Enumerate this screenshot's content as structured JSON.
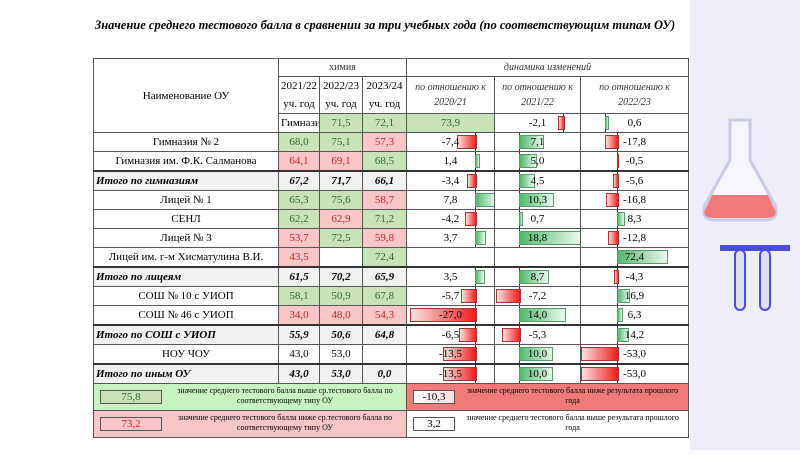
{
  "title": "Значение среднего тестового балла в сравнении за три учебных года (по соответствующим типам ОУ)",
  "header": {
    "name": "Наименование ОУ",
    "subject": "химия",
    "years": [
      "2021/22 уч. год",
      "2022/23 уч. год",
      "2023/24 уч. год"
    ],
    "dynamics": "динамика изменений",
    "dyn_cols": [
      "по отношению к 2020/21",
      "по отношению к 2021/22",
      "по отношению к 2022/23"
    ]
  },
  "rows": [
    {
      "name": "Гимназия «Лаборатория Салахова»",
      "vals": [
        "71,5",
        "72,1",
        "73,9"
      ],
      "cls": [
        "g",
        "g",
        "g"
      ],
      "dyn": [
        -2.1,
        0.6,
        1.8
      ],
      "total": false
    },
    {
      "name": "Гимназия № 2",
      "vals": [
        "68,0",
        "75,1",
        "57,3"
      ],
      "cls": [
        "g",
        "g",
        "r"
      ],
      "dyn": [
        -7.4,
        7.1,
        -17.8
      ],
      "total": false
    },
    {
      "name": "Гимназия им. Ф.К. Салманова",
      "vals": [
        "64,1",
        "69,1",
        "68,5"
      ],
      "cls": [
        "r",
        "r",
        "g"
      ],
      "dyn": [
        1.4,
        5.0,
        -0.5
      ],
      "total": false
    },
    {
      "name": "Итого по гимназиям",
      "vals": [
        "67,2",
        "71,7",
        "66,1"
      ],
      "cls": [
        "",
        "",
        ""
      ],
      "dyn": [
        -3.4,
        4.5,
        -5.6
      ],
      "total": true
    },
    {
      "name": "Лицей № 1",
      "vals": [
        "65,3",
        "75,6",
        "58,7"
      ],
      "cls": [
        "g",
        "g",
        "r"
      ],
      "dyn": [
        7.8,
        10.3,
        -16.8
      ],
      "total": false
    },
    {
      "name": "СЕНЛ",
      "vals": [
        "62,2",
        "62,9",
        "71,2"
      ],
      "cls": [
        "g",
        "r",
        "g"
      ],
      "dyn": [
        -4.2,
        0.7,
        8.3
      ],
      "total": false
    },
    {
      "name": "Лицей № 3",
      "vals": [
        "53,7",
        "72,5",
        "59,8"
      ],
      "cls": [
        "r",
        "g",
        "r"
      ],
      "dyn": [
        3.7,
        18.8,
        -12.8
      ],
      "total": false
    },
    {
      "name": "Лицей им. г-м Хисматулина В.И.",
      "vals": [
        "43,5",
        "",
        "72,4"
      ],
      "cls": [
        "r",
        "",
        "g"
      ],
      "dyn": [
        null,
        null,
        72.4
      ],
      "total": false
    },
    {
      "name": "Итого по лицеям",
      "vals": [
        "61,5",
        "70,2",
        "65,9"
      ],
      "cls": [
        "",
        "",
        ""
      ],
      "dyn": [
        3.5,
        8.7,
        -4.3
      ],
      "total": true
    },
    {
      "name": "СОШ № 10 с УИОП",
      "vals": [
        "58,1",
        "50,9",
        "67,8"
      ],
      "cls": [
        "g",
        "g",
        "g"
      ],
      "dyn": [
        -5.7,
        -7.2,
        16.9
      ],
      "total": false
    },
    {
      "name": "СОШ № 46 с УИОП",
      "vals": [
        "34,0",
        "48,0",
        "54,3"
      ],
      "cls": [
        "r",
        "r",
        "r"
      ],
      "dyn": [
        -27.0,
        14.0,
        6.3
      ],
      "total": false
    },
    {
      "name": "Итого по СОШ с УИОП",
      "vals": [
        "55,9",
        "50,6",
        "64,8"
      ],
      "cls": [
        "",
        "",
        ""
      ],
      "dyn": [
        -6.5,
        -5.3,
        14.2
      ],
      "total": true
    },
    {
      "name": "НОУ ЧОУ",
      "vals": [
        "43,0",
        "53,0",
        ""
      ],
      "cls": [
        "",
        "",
        ""
      ],
      "dyn": [
        -13.5,
        10.0,
        -53.0
      ],
      "total": false
    },
    {
      "name": "Итого по иным ОУ",
      "vals": [
        "43,0",
        "53,0",
        "0,0"
      ],
      "cls": [
        "",
        "",
        ""
      ],
      "dyn": [
        -13.5,
        10.0,
        -53.0
      ],
      "total": true
    }
  ],
  "legend": [
    {
      "sample": "75,8",
      "text": "значение среднего тестового балла выше ср.тестового балла по соответствующему типу ОУ",
      "dyn_sample": "-10,3",
      "dyn_text": "значение среднего тестового балла ниже результата прошлого года"
    },
    {
      "sample": "73,2",
      "text": "значение среднего тестового балла ниже ср.тестового балла по соответствующему типу ОУ",
      "dyn_sample": "3,2",
      "dyn_text": "значение среднего тестового балла выше результата прошлого года"
    }
  ],
  "colors": {
    "above": "#c9e3b8",
    "below": "#f8c6c6",
    "bar_pos": "#52b86a",
    "bar_neg": "#ee1b1b"
  }
}
